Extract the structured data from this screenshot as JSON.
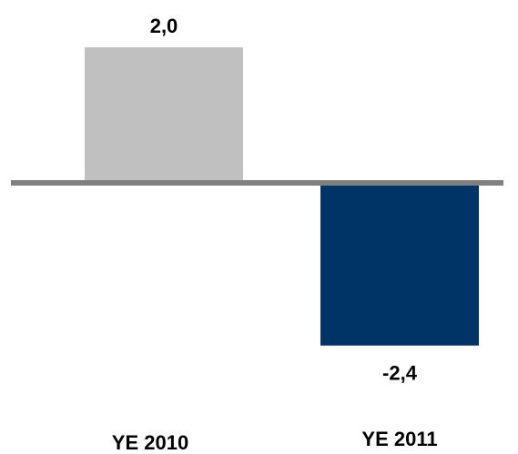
{
  "chart_data": {
    "type": "bar",
    "categories": [
      "YE 2010",
      "YE 2011"
    ],
    "values": [
      2.0,
      -2.4
    ],
    "value_labels": [
      "2,0",
      "-2,4"
    ],
    "colors": [
      "#c0c0c0",
      "#003366"
    ],
    "grid": false
  }
}
